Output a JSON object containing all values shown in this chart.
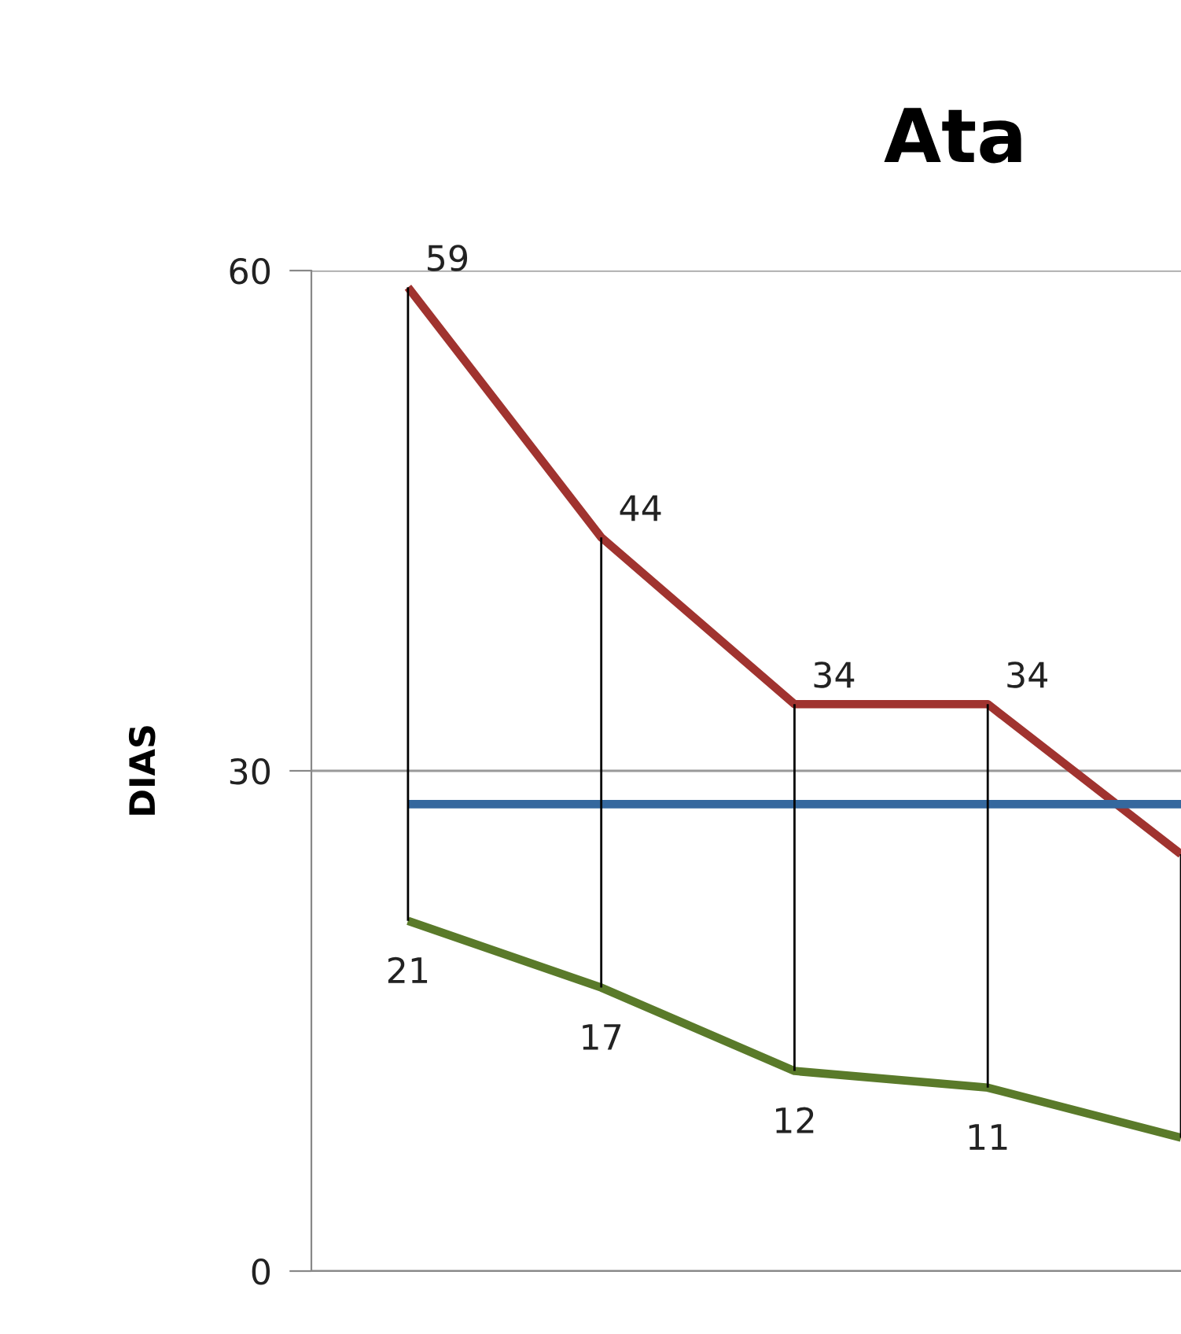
{
  "chart_data": {
    "type": "line",
    "title": "Ata",
    "ylabel": "DIAS",
    "categories": [
      null,
      null,
      null,
      null,
      null
    ],
    "series": [
      {
        "color": "#a0332f",
        "values": [
          59,
          44,
          34,
          34,
          25
        ],
        "value_labels": [
          "59",
          "44",
          "34",
          "34",
          null
        ]
      },
      {
        "color": "#35689e",
        "values": [
          28,
          28,
          28,
          28,
          28
        ],
        "errors": [
          [
            21,
            59
          ],
          [
            17,
            44
          ],
          [
            12,
            34
          ],
          [
            11,
            34
          ],
          [
            8,
            25
          ]
        ]
      },
      {
        "color": "#5a7a2a",
        "values": [
          21,
          17,
          12,
          11,
          8
        ],
        "value_labels": [
          "21",
          "17",
          "12",
          "11",
          null
        ]
      }
    ],
    "ylim": [
      0,
      60
    ],
    "yticks": [
      0,
      30,
      60
    ],
    "grid": "y",
    "legend": false,
    "marker": "none",
    "line_style": "solid"
  }
}
